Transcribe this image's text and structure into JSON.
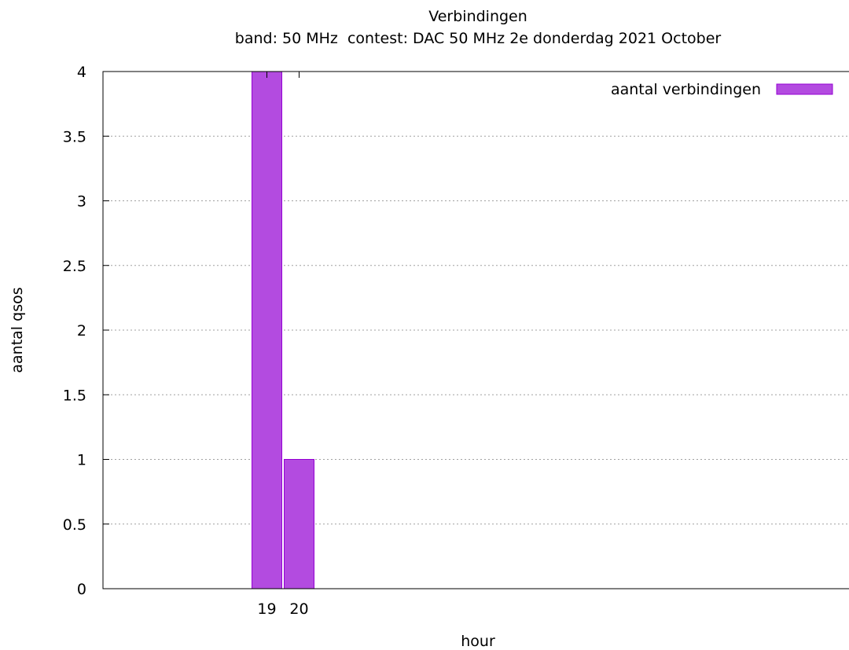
{
  "chart_data": {
    "type": "bar",
    "title": "Verbindingen",
    "subtitle": "band: 50 MHz  contest: DAC 50 MHz 2e donderdag 2021 October",
    "xlabel": "hour",
    "ylabel": "aantal qsos",
    "categories": [
      "19",
      "20"
    ],
    "series": [
      {
        "name": "aantal verbindingen",
        "values": [
          4,
          1
        ]
      }
    ],
    "ylim": [
      0,
      4
    ],
    "yticks": [
      "0",
      "0.5",
      "1",
      "1.5",
      "2",
      "2.5",
      "3",
      "3.5",
      "4"
    ],
    "grid": "horizontal dotted",
    "legend_position": "top-right",
    "bar_color": "#b34be0",
    "bar_edge_color": "#9400d3"
  }
}
